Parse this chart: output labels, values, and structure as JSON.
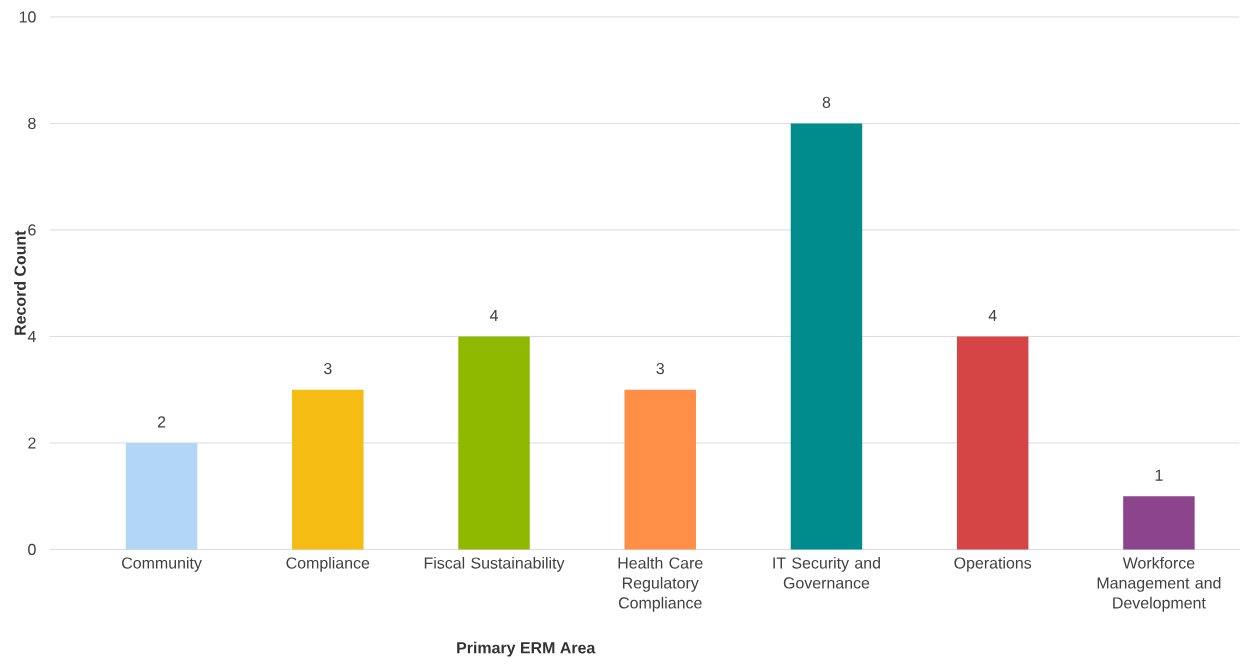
{
  "chart_data": {
    "type": "bar",
    "xlabel": "Primary ERM Area",
    "ylabel": "Record Count",
    "categories": [
      "Community",
      "Compliance",
      "Fiscal Sustainability",
      "Health Care Regulatory Compliance",
      "IT Security and Governance",
      "Operations",
      "Workforce Management and Development"
    ],
    "values": [
      2,
      3,
      4,
      3,
      8,
      4,
      1
    ],
    "colors": [
      "#b1d6f6",
      "#f5bc13",
      "#8eb900",
      "#ff8f47",
      "#008c8c",
      "#d64545",
      "#8c458c"
    ],
    "ylim": [
      0,
      10
    ],
    "yticks": [
      0,
      2,
      4,
      6,
      8,
      10
    ],
    "grid": "y",
    "data_labels": true
  }
}
